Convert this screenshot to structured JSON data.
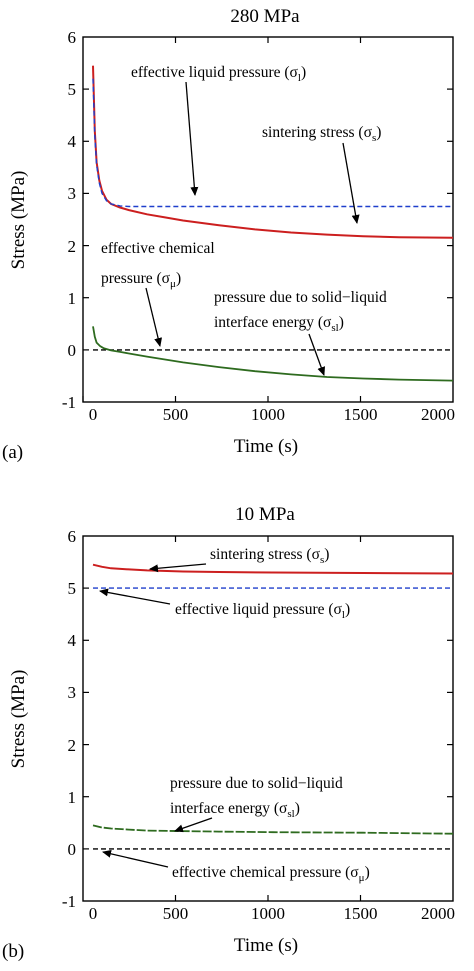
{
  "chart_data": [
    {
      "type": "line",
      "panel_label": "(a)",
      "title": "280 MPa",
      "xlabel": "Time (s)",
      "ylabel": "Stress (MPa)",
      "xlim": [
        0,
        2000
      ],
      "ylim": [
        -1,
        6
      ],
      "x_ticks": [
        "0",
        "500",
        "1000",
        "1500",
        "2000"
      ],
      "y_ticks": [
        "-1",
        "0",
        "1",
        "2",
        "3",
        "4",
        "5",
        "6"
      ],
      "grid": false,
      "legend": "none (curves annotated with arrows)",
      "series": [
        {
          "name": "sintering stress",
          "color": "#cc1f1f",
          "style": "solid",
          "x": [
            0,
            10,
            20,
            35,
            50,
            75,
            100,
            150,
            200,
            300,
            400,
            500,
            700,
            900,
            1100,
            1300,
            1500,
            1700,
            2000
          ],
          "y": [
            5.45,
            4.2,
            3.6,
            3.25,
            3.05,
            2.88,
            2.8,
            2.73,
            2.68,
            2.6,
            2.54,
            2.48,
            2.39,
            2.31,
            2.25,
            2.21,
            2.18,
            2.16,
            2.15
          ]
        },
        {
          "name": "effective liquid pressure",
          "color": "#1f3fcc",
          "style": "dashed",
          "x": [
            0,
            10,
            20,
            35,
            50,
            75,
            100,
            150,
            200,
            300,
            500,
            1000,
            1500,
            2000
          ],
          "y": [
            5.2,
            4.1,
            3.55,
            3.2,
            3.0,
            2.86,
            2.8,
            2.76,
            2.75,
            2.75,
            2.75,
            2.75,
            2.75,
            2.75
          ]
        },
        {
          "name": "effective chemical pressure",
          "color": "#000000",
          "style": "dashed",
          "x": [
            0,
            2000
          ],
          "y": [
            0,
            0
          ]
        },
        {
          "name": "pressure due to solid-liquid interface energy",
          "color": "#2e6b1f",
          "style": "solid",
          "x": [
            0,
            10,
            20,
            40,
            60,
            100,
            150,
            200,
            300,
            500,
            700,
            900,
            1100,
            1300,
            1500,
            1700,
            2000
          ],
          "y": [
            0.45,
            0.25,
            0.14,
            0.07,
            0.03,
            -0.01,
            -0.04,
            -0.07,
            -0.13,
            -0.24,
            -0.33,
            -0.41,
            -0.47,
            -0.52,
            -0.55,
            -0.57,
            -0.59
          ]
        }
      ],
      "annotations": [
        {
          "text": "effective liquid pressure (σl)",
          "target_series": 1,
          "target_x": 550,
          "target_y": 2.75
        },
        {
          "text": "sintering stress (σs)",
          "target_series": 0,
          "target_x": 1460,
          "target_y": 2.19
        },
        {
          "text_lines": [
            "effective chemical",
            "pressure (σμ)"
          ],
          "target_series": 2,
          "target_x": 420,
          "target_y": 0
        },
        {
          "text_lines": [
            "pressure due to solid−liquid",
            "interface energy (σsl)"
          ],
          "target_series": 3,
          "target_x": 1270,
          "target_y": -0.51
        }
      ]
    },
    {
      "type": "line",
      "panel_label": "(b)",
      "title": "10 MPa",
      "xlabel": "Time (s)",
      "ylabel": "Stress (MPa)",
      "xlim": [
        0,
        2000
      ],
      "ylim": [
        -1,
        6
      ],
      "x_ticks": [
        "0",
        "500",
        "1000",
        "1500",
        "2000"
      ],
      "y_ticks": [
        "-1",
        "0",
        "1",
        "2",
        "3",
        "4",
        "5",
        "6"
      ],
      "grid": false,
      "legend": "none (curves annotated with arrows)",
      "series": [
        {
          "name": "sintering stress",
          "color": "#cc1f1f",
          "style": "solid",
          "x": [
            0,
            50,
            100,
            200,
            300,
            500,
            700,
            1000,
            1500,
            2000
          ],
          "y": [
            5.45,
            5.41,
            5.38,
            5.36,
            5.34,
            5.32,
            5.31,
            5.3,
            5.29,
            5.28
          ]
        },
        {
          "name": "effective liquid pressure",
          "color": "#1f3fcc",
          "style": "dashed",
          "x": [
            0,
            2000
          ],
          "y": [
            5.0,
            5.0
          ]
        },
        {
          "name": "effective chemical pressure",
          "color": "#000000",
          "style": "dashed",
          "x": [
            0,
            2000
          ],
          "y": [
            0,
            0
          ]
        },
        {
          "name": "pressure due to solid-liquid interface energy",
          "color": "#2e6b1f",
          "style": "dashed",
          "x": [
            0,
            50,
            100,
            200,
            300,
            500,
            700,
            1000,
            1500,
            2000
          ],
          "y": [
            0.45,
            0.41,
            0.39,
            0.37,
            0.35,
            0.34,
            0.33,
            0.32,
            0.31,
            0.29
          ]
        }
      ],
      "annotations": [
        {
          "text": "sintering stress (σs)",
          "target_series": 0,
          "target_x": 300,
          "target_y": 5.34
        },
        {
          "text": "effective liquid pressure (σl)",
          "target_series": 1,
          "target_x": 60,
          "target_y": 5.0
        },
        {
          "text_lines": [
            "pressure due to solid−liquid",
            "interface energy (σsl)"
          ],
          "target_series": 3,
          "target_x": 460,
          "target_y": 0.34
        },
        {
          "text": "effective chemical pressure (σμ)",
          "target_series": 2,
          "target_x": 10,
          "target_y": 0
        }
      ]
    }
  ]
}
